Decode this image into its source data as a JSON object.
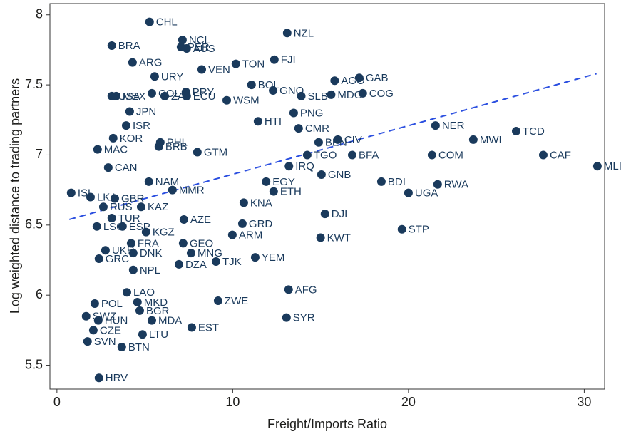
{
  "chart_data": {
    "type": "scatter",
    "x_label": "Freight/Imports Ratio",
    "y_label": "Log weighted distance to trading partners",
    "xlim": [
      -0.4,
      31.16
    ],
    "ylim": [
      5.33,
      8.08
    ],
    "xticks": [
      0,
      10,
      20,
      30
    ],
    "yticks": [
      5.5,
      6,
      6.5,
      7,
      7.5,
      8
    ],
    "color": "#1a3a5c",
    "labels": [
      "CHL",
      "NZL",
      "NCL",
      "PER",
      "AUS",
      "BRA",
      "FJI",
      "ARG",
      "TON",
      "VEN",
      "URY",
      "GAB",
      "AGO",
      "BOL",
      "GNQ",
      "COG",
      "MDG",
      "SLB",
      "USA",
      "MEX",
      "COL",
      "PRY",
      "ZAF",
      "ECU",
      "WSM",
      "PNG",
      "JPN",
      "HTI",
      "ISR",
      "NER",
      "CMR",
      "TCD",
      "MWI",
      "KOR",
      "CIV",
      "PHL",
      "BEN",
      "BRB",
      "MAC",
      "GTM",
      "BFA",
      "TGO",
      "COM",
      "CAF",
      "MLI",
      "CAN",
      "IRQ",
      "GNB",
      "BDI",
      "RWA",
      "UGA",
      "EGY",
      "ETH",
      "NAM",
      "MMR",
      "ISL",
      "LKA",
      "GBR",
      "RUS",
      "KAZ",
      "KNA",
      "DJI",
      "TUR",
      "AZE",
      "LSO",
      "ESP",
      "STP",
      "KGZ",
      "GRD",
      "ARM",
      "KWT",
      "FRA",
      "GEO",
      "DNK",
      "MNG",
      "UKR",
      "GRC",
      "YEM",
      "TJK",
      "DZA",
      "NPL",
      "AFG",
      "LAO",
      "ZWE",
      "MKD",
      "POL",
      "BGR",
      "SWZ",
      "SYR",
      "HUN",
      "MDA",
      "EST",
      "CZE",
      "LTU",
      "SVN",
      "BTN",
      "HRV"
    ],
    "x": [
      5.27,
      13.1,
      7.14,
      7.06,
      7.38,
      3.12,
      12.37,
      4.3,
      10.18,
      8.24,
      5.56,
      17.2,
      15.8,
      11.07,
      12.3,
      17.4,
      15.6,
      13.9,
      3.12,
      3.37,
      5.4,
      7.34,
      6.13,
      7.38,
      9.66,
      13.47,
      4.14,
      11.44,
      3.94,
      21.54,
      13.75,
      26.13,
      23.69,
      3.2,
      15.98,
      5.88,
      14.89,
      5.8,
      2.31,
      7.99,
      16.8,
      14.24,
      21.34,
      27.67,
      30.75,
      2.92,
      13.2,
      15.05,
      18.46,
      21.66,
      20.0,
      11.9,
      12.33,
      5.23,
      6.57,
      0.81,
      1.91,
      3.29,
      2.64,
      4.79,
      10.63,
      15.25,
      3.12,
      7.22,
      2.27,
      3.73,
      19.63,
      5.07,
      10.55,
      9.98,
      15.0,
      4.22,
      7.18,
      4.34,
      7.63,
      2.76,
      2.39,
      11.28,
      9.05,
      6.94,
      4.34,
      13.18,
      3.98,
      9.17,
      4.58,
      2.15,
      4.71,
      1.66,
      13.06,
      2.35,
      5.4,
      7.67,
      2.07,
      4.87,
      1.74,
      3.69,
      2.39
    ],
    "y": [
      7.95,
      7.87,
      7.82,
      7.77,
      7.76,
      7.78,
      7.68,
      7.66,
      7.65,
      7.61,
      7.56,
      7.55,
      7.53,
      7.5,
      7.46,
      7.44,
      7.43,
      7.42,
      7.42,
      7.42,
      7.44,
      7.45,
      7.42,
      7.42,
      7.39,
      7.3,
      7.31,
      7.24,
      7.21,
      7.21,
      7.19,
      7.17,
      7.11,
      7.12,
      7.11,
      7.09,
      7.09,
      7.06,
      7.04,
      7.02,
      7.0,
      7.0,
      7.0,
      7.0,
      6.92,
      6.91,
      6.92,
      6.86,
      6.81,
      6.79,
      6.73,
      6.81,
      6.74,
      6.81,
      6.75,
      6.73,
      6.7,
      6.69,
      6.63,
      6.63,
      6.66,
      6.58,
      6.55,
      6.54,
      6.49,
      6.49,
      6.47,
      6.45,
      6.51,
      6.43,
      6.41,
      6.37,
      6.37,
      6.3,
      6.3,
      6.32,
      6.26,
      6.27,
      6.24,
      6.22,
      6.18,
      6.04,
      6.02,
      5.96,
      5.95,
      5.94,
      5.89,
      5.85,
      5.84,
      5.82,
      5.82,
      5.77,
      5.75,
      5.72,
      5.67,
      5.63,
      5.41
    ],
    "fit_line": {
      "x": [
        0.7,
        30.7
      ],
      "y": [
        6.54,
        7.58
      ],
      "color": "#2b4fe0"
    }
  }
}
